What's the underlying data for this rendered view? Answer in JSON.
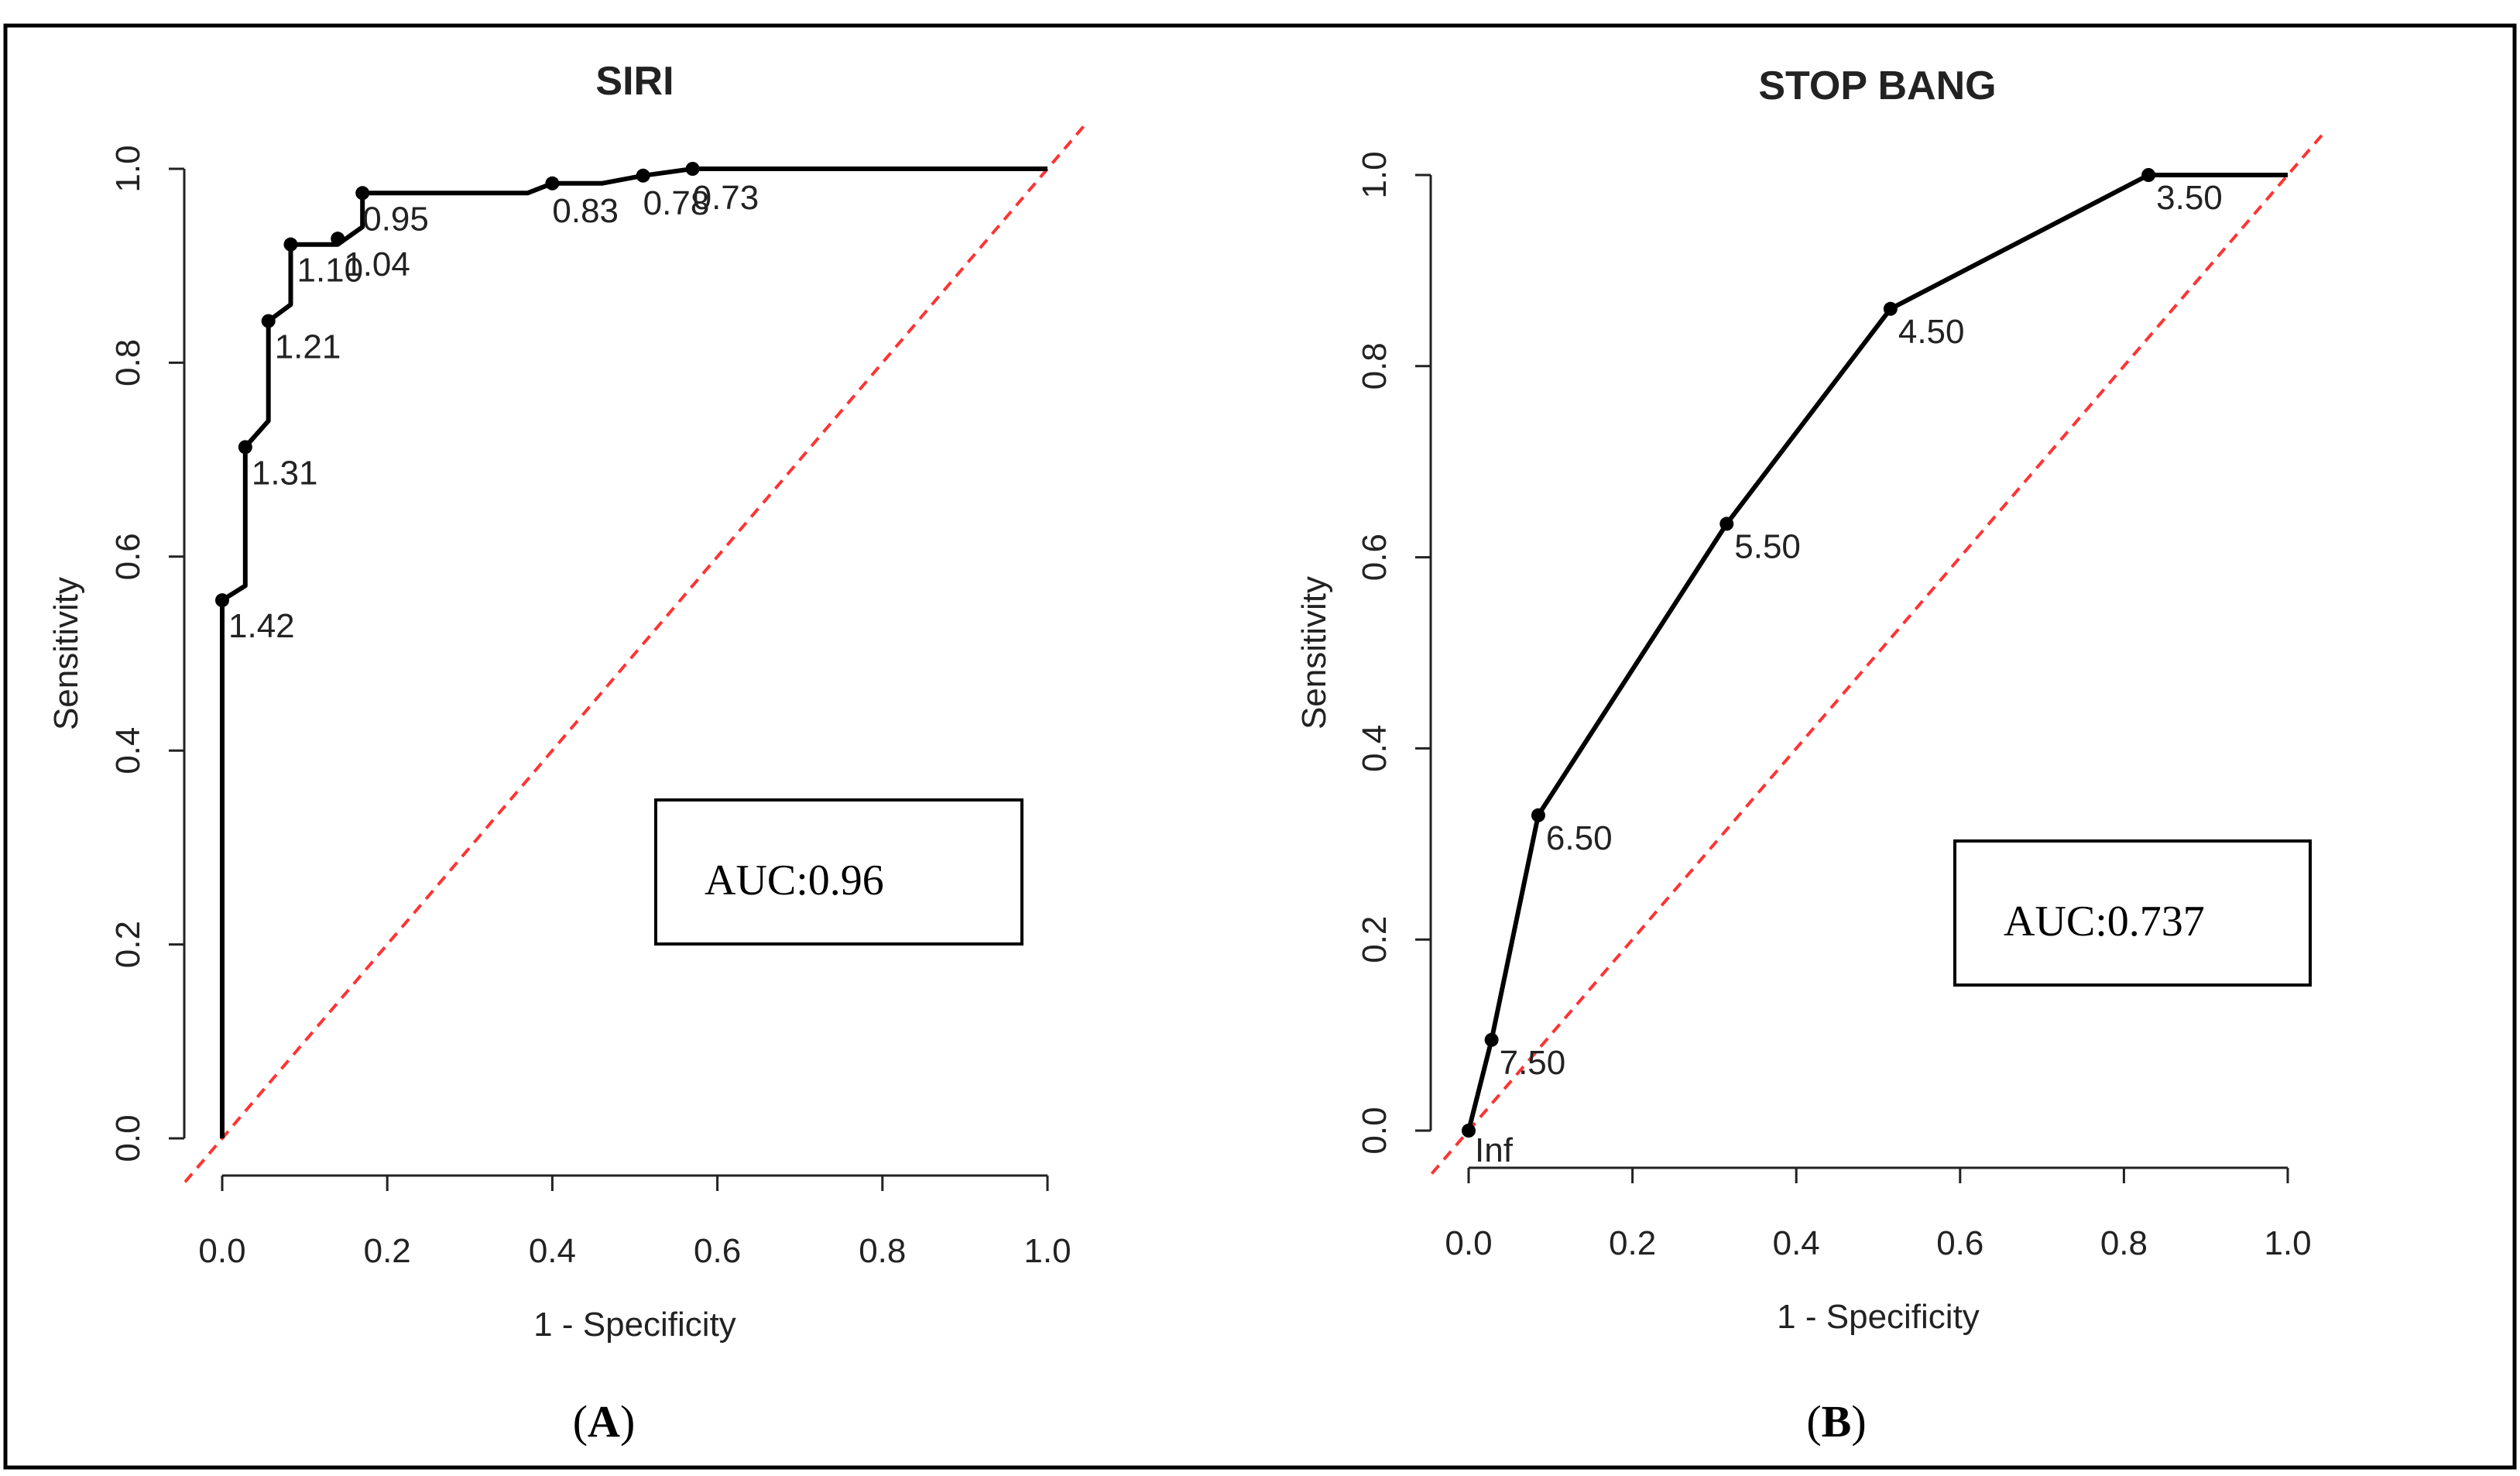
{
  "colors": {
    "curve": "#000000",
    "reference_line": "#ff3333",
    "frame": "#000000"
  },
  "chart_data": [
    {
      "type": "line",
      "panel_label": "A",
      "title": "SIRI",
      "xlabel": "1 - Specificity",
      "ylabel": "Sensitivity",
      "xlim": [
        0,
        1
      ],
      "ylim": [
        0,
        1
      ],
      "x_ticks": [
        "0.0",
        "0.2",
        "0.4",
        "0.6",
        "0.8",
        "1.0"
      ],
      "y_ticks": [
        "0.0",
        "0.2",
        "0.4",
        "0.6",
        "0.8",
        "1.0"
      ],
      "auc_label": "AUC:0.96",
      "curve": {
        "x": [
          0.0,
          0.0,
          0.028,
          0.028,
          0.056,
          0.056,
          0.083,
          0.083,
          0.14,
          0.17,
          0.17,
          0.37,
          0.4,
          0.46,
          0.51,
          0.57,
          1.0
        ],
        "y": [
          0.0,
          0.555,
          0.57,
          0.713,
          0.74,
          0.843,
          0.86,
          0.922,
          0.922,
          0.94,
          0.975,
          0.975,
          0.985,
          0.985,
          0.993,
          1.0,
          1.0
        ]
      },
      "points": [
        {
          "x": 0.0,
          "y": 0.555,
          "label": "1.42"
        },
        {
          "x": 0.028,
          "y": 0.713,
          "label": "1.31"
        },
        {
          "x": 0.056,
          "y": 0.843,
          "label": "1.21"
        },
        {
          "x": 0.083,
          "y": 0.922,
          "label": "1.10"
        },
        {
          "x": 0.14,
          "y": 0.928,
          "label": "1.04"
        },
        {
          "x": 0.17,
          "y": 0.975,
          "label": "0.95"
        },
        {
          "x": 0.4,
          "y": 0.985,
          "label": "0.83"
        },
        {
          "x": 0.51,
          "y": 0.993,
          "label": "0.78"
        },
        {
          "x": 0.57,
          "y": 1.0,
          "label": "0.73"
        }
      ],
      "reference_line": {
        "x": [
          0,
          1
        ],
        "y": [
          0,
          1
        ]
      }
    },
    {
      "type": "line",
      "panel_label": "B",
      "title": "STOP BANG",
      "xlabel": "1 - Specificity",
      "ylabel": "Sensitivity",
      "xlim": [
        0,
        1
      ],
      "ylim": [
        0,
        1
      ],
      "x_ticks": [
        "0.0",
        "0.2",
        "0.4",
        "0.6",
        "0.8",
        "1.0"
      ],
      "y_ticks": [
        "0.0",
        "0.2",
        "0.4",
        "0.6",
        "0.8",
        "1.0"
      ],
      "auc_label": "AUC:0.737",
      "curve": {
        "x": [
          0.0,
          0.028,
          0.085,
          0.315,
          0.515,
          0.83,
          1.0
        ],
        "y": [
          0.0,
          0.095,
          0.33,
          0.635,
          0.86,
          1.0,
          1.0
        ]
      },
      "points": [
        {
          "x": 0.0,
          "y": 0.0,
          "label": "Inf"
        },
        {
          "x": 0.028,
          "y": 0.095,
          "label": "7.50"
        },
        {
          "x": 0.085,
          "y": 0.33,
          "label": "6.50"
        },
        {
          "x": 0.315,
          "y": 0.635,
          "label": "5.50"
        },
        {
          "x": 0.515,
          "y": 0.86,
          "label": "4.50"
        },
        {
          "x": 0.83,
          "y": 1.0,
          "label": "3.50"
        }
      ],
      "reference_line": {
        "x": [
          0,
          1
        ],
        "y": [
          0,
          1
        ]
      }
    }
  ]
}
